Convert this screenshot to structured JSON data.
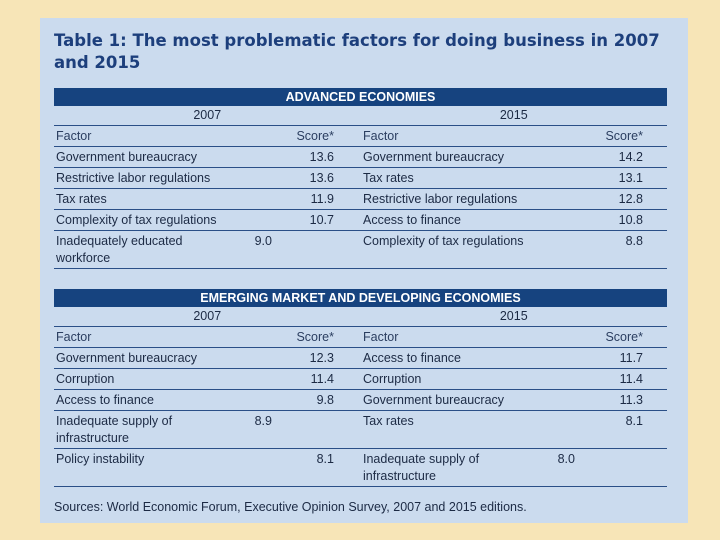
{
  "title": "Table 1: The most problematic factors for doing business in 2007 and 2015",
  "advanced": {
    "banner": "ADVANCED ECONOMIES",
    "year_left": "2007",
    "year_right": "2015",
    "header": {
      "factor": "Factor",
      "score": "Score*"
    },
    "rows": [
      {
        "f1": "Government bureaucracy",
        "s1": "13.6",
        "f2": "Government bureaucracy",
        "s2": "14.2"
      },
      {
        "f1": "Restrictive labor regulations",
        "s1": "13.6",
        "f2": "Tax rates",
        "s2": "13.1"
      },
      {
        "f1": "Tax rates",
        "s1": "11.9",
        "f2": "Restrictive labor regulations",
        "s2": "12.8"
      },
      {
        "f1": "Complexity of tax regulations",
        "s1": "10.7",
        "f2": "Access to finance",
        "s2": "10.8"
      },
      {
        "f1": "Inadequately educated workforce",
        "s1": "9.0",
        "f2": "Complexity of tax regulations",
        "s2": "8.8"
      }
    ]
  },
  "emerging": {
    "banner": "EMERGING MARKET AND DEVELOPING ECONOMIES",
    "year_left": "2007",
    "year_right": "2015",
    "header": {
      "factor": "Factor",
      "score": "Score*"
    },
    "rows": [
      {
        "f1": "Government bureaucracy",
        "s1": "12.3",
        "f2": "Access to finance",
        "s2": "11.7"
      },
      {
        "f1": "Corruption",
        "s1": "11.4",
        "f2": "Corruption",
        "s2": "11.4"
      },
      {
        "f1": "Access to finance",
        "s1": "9.8",
        "f2": "Government bureaucracy",
        "s2": "11.3"
      },
      {
        "f1": "Inadequate supply of infrastructure",
        "s1": "8.9",
        "f2": "Tax rates",
        "s2": "8.1"
      },
      {
        "f1": "Policy instability",
        "s1": "8.1",
        "f2": "Inadequate supply of infrastructure",
        "s2": "8.0"
      }
    ]
  },
  "source": "Sources: World Economic Forum, Executive Opinion Survey, 2007 and 2015 editions."
}
